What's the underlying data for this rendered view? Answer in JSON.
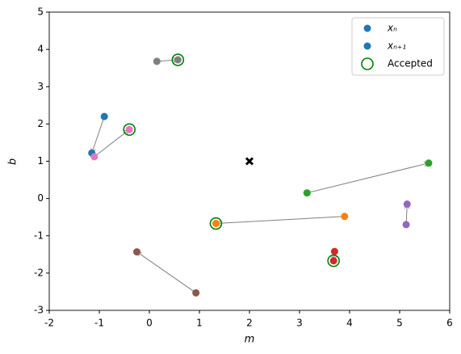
{
  "chart_data": {
    "type": "scatter",
    "xlabel": "m",
    "ylabel": "b",
    "xlim": [
      -2,
      6
    ],
    "ylim": [
      -3,
      5
    ],
    "xticks": [
      -2,
      -1,
      0,
      1,
      2,
      3,
      4,
      5,
      6
    ],
    "yticks": [
      -3,
      -2,
      -1,
      0,
      1,
      2,
      3,
      4,
      5
    ],
    "grid": false,
    "legend_position": "upper right",
    "legend": [
      {
        "label": "xₙ",
        "color": "#1f77b4"
      },
      {
        "label": "xₙ₊₁",
        "color": "#1f77b4"
      },
      {
        "label": "Accepted",
        "color": "#008000"
      }
    ],
    "arrow_color": "#808080",
    "target": {
      "x": 2,
      "y": 1,
      "color": "#000000"
    },
    "series": [
      {
        "color": "#1f77b4",
        "x": [
          -0.9,
          -1.15
        ],
        "values": [
          2.2,
          1.22
        ],
        "accepted": false
      },
      {
        "color": "#ff7f0e",
        "x": [
          3.9,
          1.33
        ],
        "values": [
          -0.48,
          -0.67
        ],
        "accepted": true
      },
      {
        "color": "#2ca02c",
        "x": [
          3.15,
          5.58
        ],
        "values": [
          0.15,
          0.95
        ],
        "accepted": false
      },
      {
        "color": "#d62728",
        "x": [
          3.7,
          3.68
        ],
        "values": [
          -1.42,
          -1.67
        ],
        "accepted": true
      },
      {
        "color": "#9467bd",
        "x": [
          5.13,
          5.15
        ],
        "values": [
          -0.7,
          -0.15
        ],
        "accepted": false
      },
      {
        "color": "#8c564b",
        "x": [
          0.93,
          -0.25
        ],
        "values": [
          -2.53,
          -1.43
        ],
        "accepted": false
      },
      {
        "color": "#e377c2",
        "x": [
          -1.1,
          -0.4
        ],
        "values": [
          1.12,
          1.85
        ],
        "accepted": true
      },
      {
        "color": "#7f7f7f",
        "x": [
          0.15,
          0.57
        ],
        "values": [
          3.68,
          3.72
        ],
        "accepted": true
      }
    ]
  }
}
